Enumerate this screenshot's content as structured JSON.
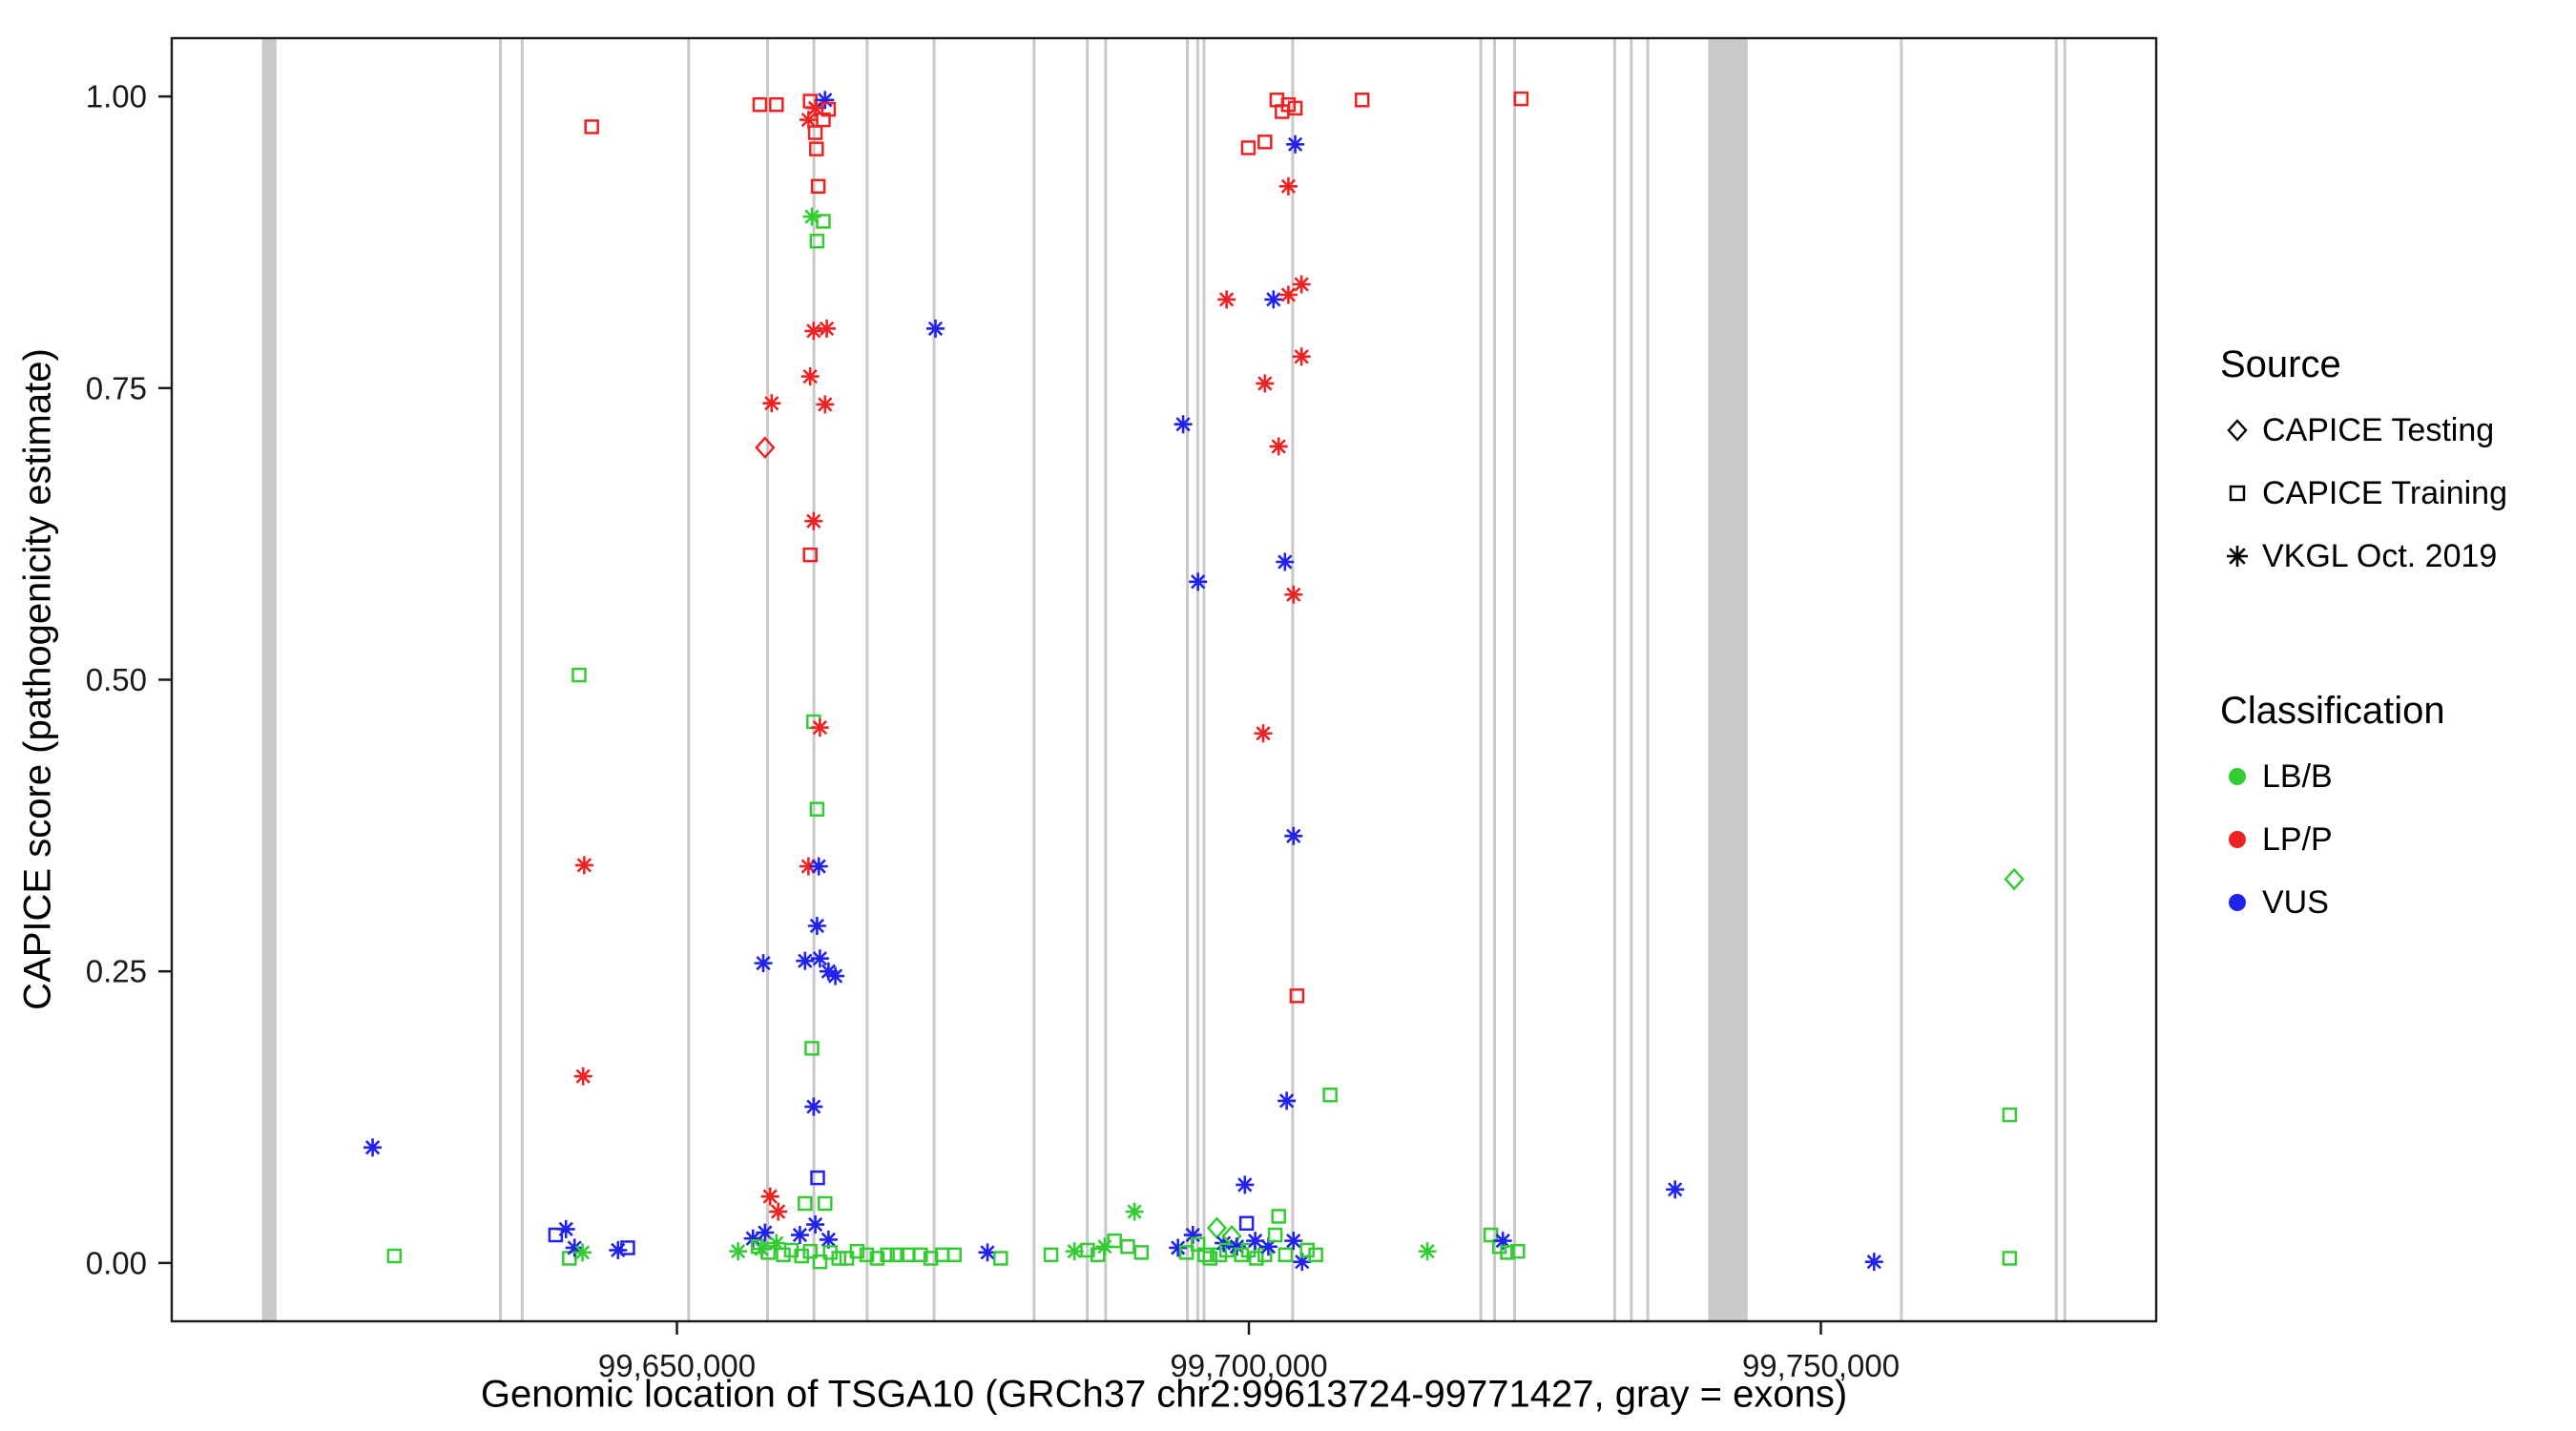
{
  "chart_data": {
    "type": "scatter",
    "title": "",
    "xlabel": "Genomic location of TSGA10 (GRCh37 chr2:99613724-99771427, gray = exons)",
    "ylabel": "CAPICE score (pathogenicity estimate)",
    "xlim": [
      99605839,
      99779312
    ],
    "ylim": [
      -0.05,
      1.05
    ],
    "grid": false,
    "x_ticks": [
      {
        "value": 99650000,
        "label": "99,650,000"
      },
      {
        "value": 99700000,
        "label": "99,700,000"
      },
      {
        "value": 99750000,
        "label": "99,750,000"
      }
    ],
    "y_ticks": [
      {
        "value": 0.0,
        "label": "0.00"
      },
      {
        "value": 0.25,
        "label": "0.25"
      },
      {
        "value": 0.5,
        "label": "0.50"
      },
      {
        "value": 0.75,
        "label": "0.75"
      },
      {
        "value": 1.0,
        "label": "1.00"
      }
    ],
    "exon_color": "#c9c9c9",
    "exons": [
      [
        99613724,
        99615000
      ],
      [
        99634450,
        99634700
      ],
      [
        99636350,
        99636600
      ],
      [
        99650900,
        99651150
      ],
      [
        99657800,
        99658050
      ],
      [
        99661850,
        99662100
      ],
      [
        99666500,
        99666750
      ],
      [
        99672350,
        99672600
      ],
      [
        99681100,
        99681350
      ],
      [
        99685750,
        99686000
      ],
      [
        99687350,
        99687600
      ],
      [
        99694500,
        99694750
      ],
      [
        99695400,
        99695650
      ],
      [
        99695950,
        99696200
      ],
      [
        99703700,
        99703950
      ],
      [
        99720150,
        99720400
      ],
      [
        99721350,
        99721600
      ],
      [
        99723100,
        99723350
      ],
      [
        99731850,
        99732100
      ],
      [
        99733300,
        99733550
      ],
      [
        99734750,
        99735000
      ],
      [
        99740150,
        99743600
      ],
      [
        99756900,
        99757150
      ],
      [
        99770450,
        99770700
      ],
      [
        99771200,
        99771427
      ]
    ],
    "source_codes": {
      "T": "CAPICE Testing",
      "R": "CAPICE Training",
      "V": "VKGL Oct. 2019"
    },
    "classes": {
      "LB": {
        "label": "LB/B",
        "color": "#33cc33"
      },
      "LP": {
        "label": "LP/P",
        "color": "#ee2222"
      },
      "VUS": {
        "label": "VUS",
        "color": "#2222ee"
      }
    },
    "legend": {
      "source_title": "Source",
      "source_items": [
        {
          "marker": "diamond",
          "label": "CAPICE Testing"
        },
        {
          "marker": "square",
          "label": "CAPICE Training"
        },
        {
          "marker": "asterisk",
          "label": "VKGL Oct. 2019"
        }
      ],
      "class_title": "Classification",
      "class_items": [
        {
          "class": "LB",
          "label": "LB/B"
        },
        {
          "class": "LP",
          "label": "LP/P"
        },
        {
          "class": "VUS",
          "label": "VUS"
        }
      ]
    },
    "points": [
      [
        99623400,
        0.099,
        "V",
        "VUS"
      ],
      [
        99625300,
        0.006,
        "R",
        "LB"
      ],
      [
        99639400,
        0.024,
        "R",
        "VUS"
      ],
      [
        99640300,
        0.029,
        "V",
        "VUS"
      ],
      [
        99640600,
        0.004,
        "R",
        "LB"
      ],
      [
        99641050,
        0.013,
        "V",
        "VUS"
      ],
      [
        99641450,
        0.504,
        "R",
        "LB"
      ],
      [
        99641750,
        0.009,
        "V",
        "LB"
      ],
      [
        99641900,
        0.341,
        "V",
        "LP"
      ],
      [
        99641800,
        0.16,
        "V",
        "LP"
      ],
      [
        99642550,
        0.974,
        "R",
        "LP"
      ],
      [
        99644850,
        0.011,
        "V",
        "VUS"
      ],
      [
        99645700,
        0.013,
        "R",
        "VUS"
      ],
      [
        99655350,
        0.01,
        "V",
        "LB"
      ],
      [
        99657250,
        0.993,
        "R",
        "LP"
      ],
      [
        99658700,
        0.993,
        "R",
        "LP"
      ],
      [
        99656650,
        0.021,
        "V",
        "VUS"
      ],
      [
        99657100,
        0.014,
        "R",
        "LB"
      ],
      [
        99657400,
        0.012,
        "V",
        "LB"
      ],
      [
        99657550,
        0.257,
        "V",
        "VUS"
      ],
      [
        99657700,
        0.699,
        "T",
        "LP"
      ],
      [
        99657700,
        0.026,
        "V",
        "VUS"
      ],
      [
        99657980,
        0.009,
        "R",
        "LB"
      ],
      [
        99658150,
        0.057,
        "V",
        "LP"
      ],
      [
        99658280,
        0.737,
        "V",
        "LP"
      ],
      [
        99658700,
        0.017,
        "V",
        "LB"
      ],
      [
        99658850,
        0.044,
        "V",
        "LP"
      ],
      [
        99659300,
        0.007,
        "R",
        "LB"
      ],
      [
        99660000,
        0.011,
        "R",
        "LB"
      ],
      [
        99660750,
        0.024,
        "V",
        "VUS"
      ],
      [
        99660900,
        0.006,
        "R",
        "LB"
      ],
      [
        99661200,
        0.259,
        "V",
        "VUS"
      ],
      [
        99661200,
        0.051,
        "R",
        "LB"
      ],
      [
        99661500,
        0.98,
        "V",
        "LP"
      ],
      [
        99661500,
        0.34,
        "V",
        "LP"
      ],
      [
        99661650,
        0.996,
        "R",
        "LP"
      ],
      [
        99661650,
        0.76,
        "V",
        "LP"
      ],
      [
        99661650,
        0.607,
        "R",
        "LP"
      ],
      [
        99661650,
        0.01,
        "R",
        "LB"
      ],
      [
        99661800,
        0.897,
        "V",
        "LB"
      ],
      [
        99661800,
        0.184,
        "R",
        "LB"
      ],
      [
        99661950,
        0.799,
        "V",
        "LP"
      ],
      [
        99661950,
        0.636,
        "V",
        "LP"
      ],
      [
        99661950,
        0.464,
        "R",
        "LB"
      ],
      [
        99661950,
        0.134,
        "V",
        "VUS"
      ],
      [
        99662100,
        0.99,
        "V",
        "LP"
      ],
      [
        99662100,
        0.969,
        "R",
        "LP"
      ],
      [
        99662100,
        0.033,
        "V",
        "VUS"
      ],
      [
        99662200,
        0.955,
        "R",
        "LP"
      ],
      [
        99662250,
        0.876,
        "R",
        "LB"
      ],
      [
        99662250,
        0.389,
        "R",
        "LB"
      ],
      [
        99662250,
        0.289,
        "V",
        "VUS"
      ],
      [
        99662300,
        0.073,
        "R",
        "VUS"
      ],
      [
        99662350,
        0.923,
        "R",
        "LP"
      ],
      [
        99662500,
        0.459,
        "V",
        "LP"
      ],
      [
        99662500,
        0.261,
        "V",
        "VUS"
      ],
      [
        99662500,
        0.001,
        "R",
        "LB"
      ],
      [
        99662400,
        0.34,
        "V",
        "VUS"
      ],
      [
        99662800,
        0.98,
        "R",
        "LP"
      ],
      [
        99662800,
        0.893,
        "R",
        "LB"
      ],
      [
        99662950,
        0.997,
        "V",
        "VUS"
      ],
      [
        99662950,
        0.736,
        "V",
        "LP"
      ],
      [
        99662950,
        0.051,
        "R",
        "LB"
      ],
      [
        99663100,
        0.801,
        "V",
        "LP"
      ],
      [
        99663250,
        0.989,
        "R",
        "LP"
      ],
      [
        99663250,
        0.25,
        "V",
        "VUS"
      ],
      [
        99663250,
        0.02,
        "V",
        "VUS"
      ],
      [
        99663400,
        0.009,
        "R",
        "LB"
      ],
      [
        99663850,
        0.246,
        "V",
        "VUS"
      ],
      [
        99664150,
        0.004,
        "R",
        "LB"
      ],
      [
        99664850,
        0.004,
        "R",
        "LB"
      ],
      [
        99665750,
        0.01,
        "R",
        "LB"
      ],
      [
        99666600,
        0.007,
        "R",
        "LB"
      ],
      [
        99667500,
        0.004,
        "R",
        "LB"
      ],
      [
        99668400,
        0.007,
        "R",
        "LB"
      ],
      [
        99669250,
        0.007,
        "R",
        "LB"
      ],
      [
        99670150,
        0.007,
        "R",
        "LB"
      ],
      [
        99671300,
        0.007,
        "R",
        "LB"
      ],
      [
        99672200,
        0.004,
        "R",
        "LB"
      ],
      [
        99672600,
        0.801,
        "V",
        "VUS"
      ],
      [
        99673200,
        0.007,
        "R",
        "LB"
      ],
      [
        99674250,
        0.007,
        "R",
        "LB"
      ],
      [
        99677150,
        0.009,
        "V",
        "VUS"
      ],
      [
        99678300,
        0.004,
        "R",
        "LB"
      ],
      [
        99682700,
        0.007,
        "R",
        "LB"
      ],
      [
        99684750,
        0.01,
        "V",
        "LB"
      ],
      [
        99685900,
        0.011,
        "R",
        "LB"
      ],
      [
        99686800,
        0.007,
        "R",
        "LB"
      ],
      [
        99687400,
        0.014,
        "V",
        "LB"
      ],
      [
        99688250,
        0.019,
        "R",
        "LB"
      ],
      [
        99689400,
        0.014,
        "R",
        "LB"
      ],
      [
        99690000,
        0.044,
        "V",
        "LB"
      ],
      [
        99690600,
        0.009,
        "R",
        "LB"
      ],
      [
        99693800,
        0.013,
        "V",
        "VUS"
      ],
      [
        99694250,
        0.719,
        "V",
        "VUS"
      ],
      [
        99694550,
        0.009,
        "R",
        "LB"
      ],
      [
        99695100,
        0.024,
        "V",
        "VUS"
      ],
      [
        99695550,
        0.584,
        "V",
        "VUS"
      ],
      [
        99695550,
        0.016,
        "R",
        "LB"
      ],
      [
        99696150,
        0.007,
        "R",
        "LB"
      ],
      [
        99696600,
        0.004,
        "R",
        "LB"
      ],
      [
        99697200,
        0.03,
        "T",
        "LB"
      ],
      [
        99697450,
        0.007,
        "R",
        "LB"
      ],
      [
        99697800,
        0.017,
        "V",
        "VUS"
      ],
      [
        99698050,
        0.826,
        "V",
        "LP"
      ],
      [
        99698050,
        0.011,
        "R",
        "LB"
      ],
      [
        99698500,
        0.023,
        "T",
        "LB"
      ],
      [
        99698950,
        0.014,
        "V",
        "VUS"
      ],
      [
        99699350,
        0.007,
        "R",
        "LB"
      ],
      [
        99699650,
        0.067,
        "V",
        "VUS"
      ],
      [
        99699800,
        0.034,
        "R",
        "VUS"
      ],
      [
        99699950,
        0.956,
        "R",
        "LP"
      ],
      [
        99699950,
        0.011,
        "R",
        "LB"
      ],
      [
        99700550,
        0.019,
        "V",
        "VUS"
      ],
      [
        99700650,
        0.004,
        "R",
        "LB"
      ],
      [
        99701250,
        0.454,
        "V",
        "LP"
      ],
      [
        99701400,
        0.961,
        "R",
        "LP"
      ],
      [
        99701400,
        0.754,
        "V",
        "LP"
      ],
      [
        99701400,
        0.007,
        "R",
        "LB"
      ],
      [
        99701700,
        0.014,
        "V",
        "VUS"
      ],
      [
        99702150,
        0.826,
        "V",
        "VUS"
      ],
      [
        99702300,
        0.024,
        "R",
        "LB"
      ],
      [
        99702450,
        0.997,
        "R",
        "LP"
      ],
      [
        99702600,
        0.7,
        "V",
        "LP"
      ],
      [
        99702600,
        0.04,
        "R",
        "LB"
      ],
      [
        99702900,
        0.987,
        "R",
        "LP"
      ],
      [
        99703150,
        0.601,
        "V",
        "VUS"
      ],
      [
        99703200,
        0.007,
        "R",
        "LB"
      ],
      [
        99703300,
        0.139,
        "V",
        "VUS"
      ],
      [
        99703450,
        0.993,
        "R",
        "LP"
      ],
      [
        99703450,
        0.923,
        "V",
        "LP"
      ],
      [
        99703450,
        0.83,
        "V",
        "LP"
      ],
      [
        99703900,
        0.573,
        "V",
        "LP"
      ],
      [
        99703900,
        0.366,
        "V",
        "VUS"
      ],
      [
        99703900,
        0.019,
        "V",
        "VUS"
      ],
      [
        99704050,
        0.99,
        "R",
        "LP"
      ],
      [
        99704050,
        0.959,
        "V",
        "VUS"
      ],
      [
        99704200,
        0.229,
        "R",
        "LP"
      ],
      [
        99704600,
        0.839,
        "V",
        "LP"
      ],
      [
        99704600,
        0.777,
        "V",
        "LP"
      ],
      [
        99704650,
        0.001,
        "V",
        "VUS"
      ],
      [
        99705100,
        0.011,
        "R",
        "LB"
      ],
      [
        99705850,
        0.007,
        "R",
        "LB"
      ],
      [
        99707100,
        0.144,
        "R",
        "LB"
      ],
      [
        99709900,
        0.997,
        "R",
        "LP"
      ],
      [
        99715600,
        0.01,
        "V",
        "LB"
      ],
      [
        99721150,
        0.024,
        "R",
        "LB"
      ],
      [
        99721900,
        0.014,
        "R",
        "LB"
      ],
      [
        99722200,
        0.019,
        "V",
        "VUS"
      ],
      [
        99722600,
        0.009,
        "R",
        "LB"
      ],
      [
        99723500,
        0.01,
        "R",
        "LB"
      ],
      [
        99723800,
        0.998,
        "R",
        "LP"
      ],
      [
        99737250,
        0.063,
        "V",
        "VUS"
      ],
      [
        99754650,
        0.001,
        "V",
        "VUS"
      ],
      [
        99766900,
        0.329,
        "T",
        "LB"
      ],
      [
        99766500,
        0.127,
        "R",
        "LB"
      ],
      [
        99766500,
        0.004,
        "R",
        "LB"
      ]
    ]
  }
}
